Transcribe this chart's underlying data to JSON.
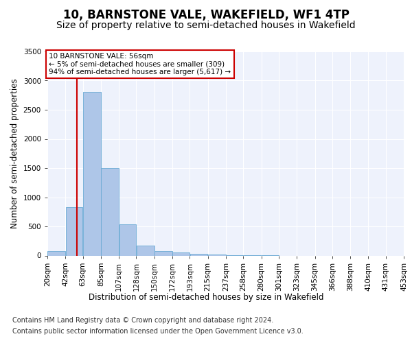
{
  "title": "10, BARNSTONE VALE, WAKEFIELD, WF1 4TP",
  "subtitle": "Size of property relative to semi-detached houses in Wakefield",
  "xlabel": "Distribution of semi-detached houses by size in Wakefield",
  "ylabel": "Number of semi-detached properties",
  "footer_line1": "Contains HM Land Registry data © Crown copyright and database right 2024.",
  "footer_line2": "Contains public sector information licensed under the Open Government Licence v3.0.",
  "annotation_title": "10 BARNSTONE VALE: 56sqm",
  "annotation_line1": "← 5% of semi-detached houses are smaller (309)",
  "annotation_line2": "94% of semi-detached houses are larger (5,617) →",
  "property_size": 56,
  "bin_edges": [
    20,
    42,
    63,
    85,
    107,
    128,
    150,
    172,
    193,
    215,
    237,
    258,
    280,
    301,
    323,
    345,
    366,
    388,
    410,
    431,
    453
  ],
  "bar_heights": [
    80,
    830,
    2800,
    1500,
    540,
    170,
    80,
    50,
    35,
    20,
    10,
    2,
    1,
    0,
    0,
    0,
    0,
    0,
    0,
    0
  ],
  "bar_color": "#aec6e8",
  "bar_edge_color": "#6aaad4",
  "red_line_color": "#cc0000",
  "annotation_box_color": "#cc0000",
  "background_color": "#eef2fc",
  "ylim_max": 3500,
  "yticks": [
    0,
    500,
    1000,
    1500,
    2000,
    2500,
    3000,
    3500
  ],
  "title_fontsize": 12,
  "subtitle_fontsize": 10,
  "axis_label_fontsize": 8.5,
  "ylabel_fontsize": 8.5,
  "tick_fontsize": 7.5,
  "annotation_fontsize": 7.5,
  "footer_fontsize": 7.0
}
